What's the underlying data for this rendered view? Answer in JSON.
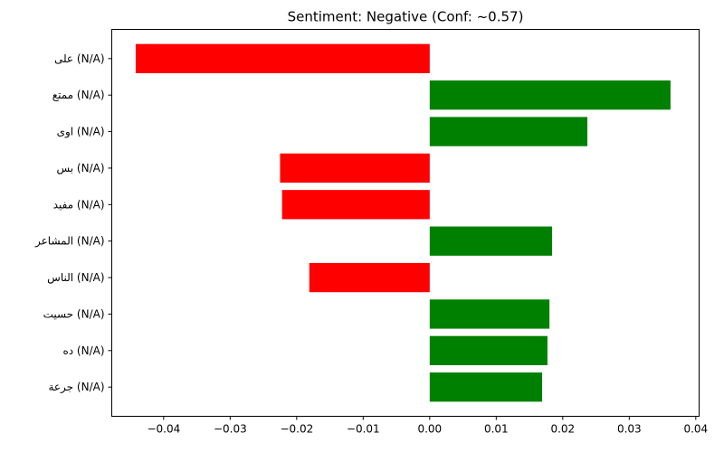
{
  "chart_data": {
    "type": "bar",
    "orientation": "horizontal",
    "title": "Sentiment: Negative (Conf: ~0.57)",
    "xlabel": "",
    "ylabel": "",
    "categories": [
      "على (N/A)",
      "ممتع (N/A)",
      "اوى (N/A)",
      "بس (N/A)",
      "مفيد (N/A)",
      "المشاعر (N/A)",
      "الناس (N/A)",
      "حسيت (N/A)",
      "ده (N/A)",
      "جرعة (N/A)"
    ],
    "values": [
      -0.0442,
      0.0362,
      0.0237,
      -0.0225,
      -0.0222,
      0.0184,
      -0.0181,
      0.018,
      0.0177,
      0.0169
    ],
    "xlim": [
      -0.0478,
      0.0405
    ],
    "xticks": [
      -0.04,
      -0.03,
      -0.02,
      -0.01,
      0.0,
      0.01,
      0.02,
      0.03,
      0.04
    ],
    "xtick_labels": [
      "−0.04",
      "−0.03",
      "−0.02",
      "−0.01",
      "0.00",
      "0.01",
      "0.02",
      "0.03",
      "0.04"
    ],
    "grid": false,
    "legend": "none",
    "colors": {
      "positive": "#008000",
      "negative": "#ff0000"
    }
  }
}
